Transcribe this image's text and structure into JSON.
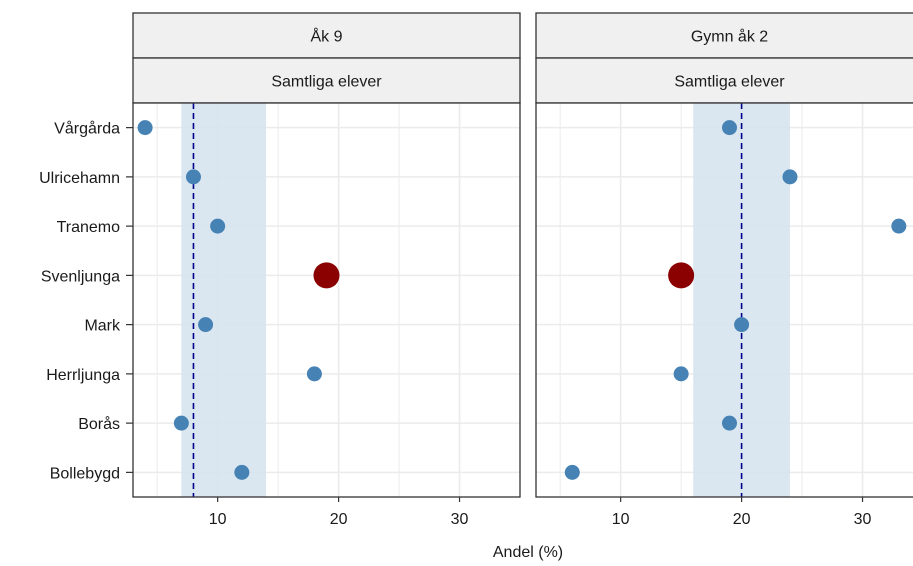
{
  "chart_data": {
    "type": "scatter",
    "xlabel": "Andel (%)",
    "ylabel": "",
    "categories": [
      "Vårgårda",
      "Ulricehamn",
      "Tranemo",
      "Svenljunga",
      "Mark",
      "Herrljunga",
      "Borås",
      "Bollebygd"
    ],
    "highlight_category": "Svenljunga",
    "xlim": [
      3,
      35
    ],
    "xticks": [
      10,
      20,
      30
    ],
    "grid": true,
    "colors": {
      "point": "#4682b4",
      "highlight": "#8b0000",
      "band": "#d6e4f0",
      "reference_line": "#00008b",
      "strip_fill": "#f0f0f0",
      "grid": "#ebebeb",
      "border": "#333333"
    },
    "panels": [
      {
        "strip_top": "Åk 9",
        "strip_bottom": "Samtliga elever",
        "band": [
          7,
          14
        ],
        "reference": 8,
        "values": [
          4,
          8,
          10,
          19,
          9,
          18,
          7,
          12
        ]
      },
      {
        "strip_top": "Gymn åk 2",
        "strip_bottom": "Samtliga elever",
        "band": [
          16,
          24
        ],
        "reference": 20,
        "values": [
          19,
          24,
          33,
          15,
          20,
          15,
          19,
          6
        ]
      }
    ]
  }
}
